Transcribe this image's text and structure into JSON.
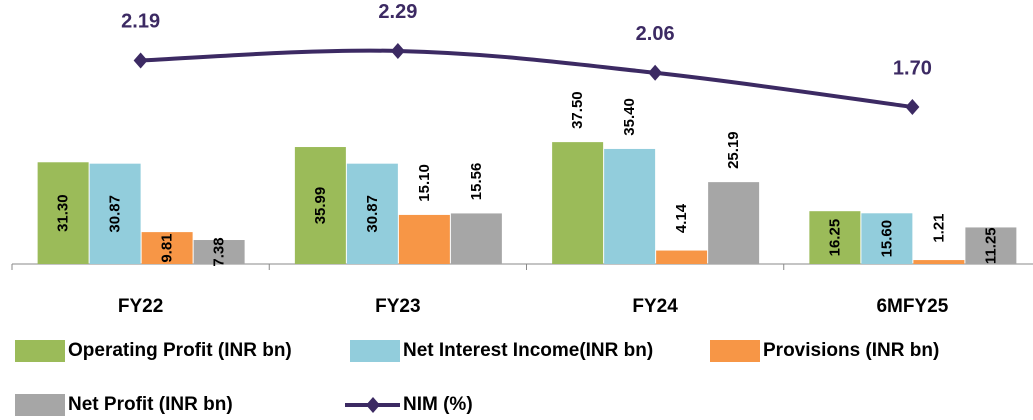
{
  "chart_data": {
    "type": "bar",
    "categories": [
      "FY22",
      "FY23",
      "FY24",
      "6MFY25"
    ],
    "series": [
      {
        "name": "Operating Profit (INR bn)",
        "color": "#9bbb59",
        "values": [
          31.3,
          35.99,
          37.5,
          16.25
        ],
        "value_labels": [
          "31.30",
          "35.99",
          "37.50",
          "16.25"
        ]
      },
      {
        "name": "Net Interest Income(INR bn)",
        "color": "#92cddc",
        "values": [
          30.87,
          30.87,
          35.4,
          15.6
        ],
        "value_labels": [
          "30.87",
          "30.87",
          "35.40",
          "15.60"
        ]
      },
      {
        "name": "Provisions (INR bn)",
        "color": "#f79646",
        "values": [
          9.81,
          15.1,
          4.14,
          1.21
        ],
        "value_labels": [
          "9.81",
          "15.10",
          "4.14",
          "1.21"
        ]
      },
      {
        "name": "Net Profit (INR bn)",
        "color": "#a6a6a6",
        "values": [
          7.38,
          15.56,
          25.19,
          11.25
        ],
        "value_labels": [
          "7.38",
          "15.56",
          "25.19",
          "11.25"
        ]
      },
      {
        "name": "NIM (%)",
        "type": "line",
        "axis": "y2",
        "color": "#3c2a63",
        "values": [
          2.19,
          2.29,
          2.06,
          1.7
        ],
        "value_labels": [
          "2.19",
          "2.29",
          "2.06",
          "1.70"
        ]
      }
    ],
    "ylim": [
      0,
      45
    ],
    "y2lim": [
      1.0,
      2.5
    ],
    "legend": "bottom"
  }
}
